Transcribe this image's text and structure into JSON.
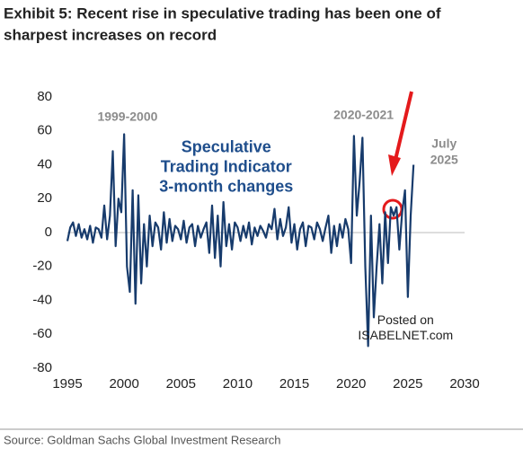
{
  "chart_data": {
    "type": "line",
    "title": [
      "Exhibit 5: Recent rise in speculative trading has been one of",
      "sharpest increases on record"
    ],
    "source": "Source: Goldman Sachs Global Investment Research",
    "x": [
      1995,
      1995.25,
      1995.5,
      1995.75,
      1996,
      1996.25,
      1996.5,
      1996.75,
      1997,
      1997.25,
      1997.5,
      1997.75,
      1998,
      1998.25,
      1998.5,
      1998.75,
      1999,
      1999.25,
      1999.5,
      1999.75,
      2000,
      2000.25,
      2000.5,
      2000.75,
      2001,
      2001.25,
      2001.5,
      2001.75,
      2002,
      2002.25,
      2002.5,
      2002.75,
      2003,
      2003.25,
      2003.5,
      2003.75,
      2004,
      2004.25,
      2004.5,
      2004.75,
      2005,
      2005.25,
      2005.5,
      2005.75,
      2006,
      2006.25,
      2006.5,
      2006.75,
      2007,
      2007.25,
      2007.5,
      2007.75,
      2008,
      2008.25,
      2008.5,
      2008.75,
      2009,
      2009.25,
      2009.5,
      2009.75,
      2010,
      2010.25,
      2010.5,
      2010.75,
      2011,
      2011.25,
      2011.5,
      2011.75,
      2012,
      2012.25,
      2012.5,
      2012.75,
      2013,
      2013.25,
      2013.5,
      2013.75,
      2014,
      2014.25,
      2014.5,
      2014.75,
      2015,
      2015.25,
      2015.5,
      2015.75,
      2016,
      2016.25,
      2016.5,
      2016.75,
      2017,
      2017.25,
      2017.5,
      2017.75,
      2018,
      2018.25,
      2018.5,
      2018.75,
      2019,
      2019.25,
      2019.5,
      2019.75,
      2020,
      2020.25,
      2020.5,
      2020.75,
      2021,
      2021.25,
      2021.5,
      2021.75,
      2022,
      2022.25,
      2022.5,
      2022.75,
      2023,
      2023.25,
      2023.5,
      2023.75,
      2024,
      2024.25,
      2024.5,
      2024.75,
      2025,
      2025.25,
      2025.5
    ],
    "values": [
      -5,
      3,
      6,
      -2,
      5,
      -3,
      2,
      -4,
      4,
      -6,
      3,
      2,
      -3,
      16,
      -4,
      10,
      48,
      -8,
      20,
      12,
      58,
      -20,
      -35,
      25,
      -42,
      22,
      -30,
      5,
      -20,
      10,
      -8,
      6,
      3,
      -10,
      12,
      -6,
      8,
      -5,
      4,
      2,
      -4,
      7,
      -6,
      3,
      5,
      -8,
      4,
      -3,
      2,
      6,
      -12,
      16,
      -15,
      10,
      -20,
      18,
      -8,
      5,
      -10,
      6,
      3,
      -5,
      4,
      -3,
      6,
      -7,
      3,
      -2,
      4,
      1,
      -3,
      5,
      2,
      14,
      -4,
      8,
      -2,
      3,
      15,
      -6,
      5,
      -10,
      2,
      6,
      -8,
      4,
      3,
      -4,
      6,
      2,
      -5,
      3,
      10,
      -12,
      4,
      -8,
      5,
      -3,
      8,
      2,
      -18,
      57,
      10,
      30,
      56,
      -20,
      -67,
      10,
      -50,
      -20,
      5,
      -30,
      12,
      -18,
      15,
      10,
      15,
      -10,
      12,
      25,
      -38,
      10,
      40
    ],
    "color": "#173b6c",
    "xlim": [
      1995,
      2030
    ],
    "xticks": [
      1995,
      2000,
      2005,
      2010,
      2015,
      2020,
      2025,
      2030
    ],
    "ylim": [
      -80,
      80
    ],
    "yticks": [
      -80,
      -60,
      -40,
      -20,
      0,
      20,
      40,
      60,
      80
    ],
    "annotations": [
      {
        "lines": [
          "1999-2000"
        ],
        "x": 2000.3,
        "y": 68,
        "style": "gray"
      },
      {
        "lines": [
          "2020-2021"
        ],
        "x": 2021.1,
        "y": 69,
        "style": "gray"
      },
      {
        "lines": [
          "July",
          "2025"
        ],
        "x": 2028.2,
        "y": 52,
        "style": "gray"
      },
      {
        "lines": [
          "Speculative",
          "Trading Indicator",
          "3-month changes"
        ],
        "x": 2009.0,
        "y": 50,
        "style": "blue"
      },
      {
        "lines": [
          "Posted on",
          "ISABELNET.com"
        ],
        "x": 2024.8,
        "y": -52,
        "style": "mark"
      }
    ]
  }
}
